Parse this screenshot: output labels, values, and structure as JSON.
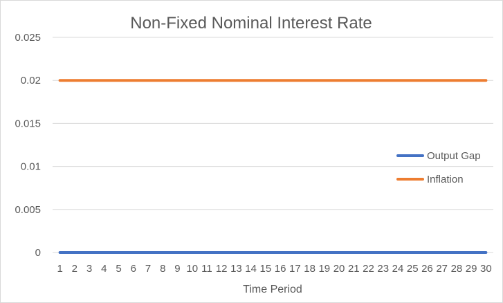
{
  "chart_data": {
    "type": "line",
    "title": "Non-Fixed Nominal Interest Rate",
    "xlabel": "Time Period",
    "ylabel": "",
    "categories": [
      "1",
      "2",
      "3",
      "4",
      "5",
      "6",
      "7",
      "8",
      "9",
      "10",
      "11",
      "12",
      "13",
      "14",
      "15",
      "16",
      "17",
      "18",
      "19",
      "20",
      "21",
      "22",
      "23",
      "24",
      "25",
      "26",
      "27",
      "28",
      "29",
      "30"
    ],
    "ylim": [
      0,
      0.025
    ],
    "yticks": [
      "0.025",
      "0.02",
      "0.015",
      "0.01",
      "0.005",
      "0"
    ],
    "ytick_values": [
      0.025,
      0.02,
      0.015,
      0.01,
      0.005,
      0
    ],
    "grid": true,
    "legend_position": "right",
    "series": [
      {
        "name": "Output Gap",
        "color": "#4472C4",
        "values": [
          0,
          0,
          0,
          0,
          0,
          0,
          0,
          0,
          0,
          0,
          0,
          0,
          0,
          0,
          0,
          0,
          0,
          0,
          0,
          0,
          0,
          0,
          0,
          0,
          0,
          0,
          0,
          0,
          0,
          0
        ]
      },
      {
        "name": "Inflation",
        "color": "#ED7D31",
        "values": [
          0.02,
          0.02,
          0.02,
          0.02,
          0.02,
          0.02,
          0.02,
          0.02,
          0.02,
          0.02,
          0.02,
          0.02,
          0.02,
          0.02,
          0.02,
          0.02,
          0.02,
          0.02,
          0.02,
          0.02,
          0.02,
          0.02,
          0.02,
          0.02,
          0.02,
          0.02,
          0.02,
          0.02,
          0.02,
          0.02
        ]
      }
    ]
  }
}
